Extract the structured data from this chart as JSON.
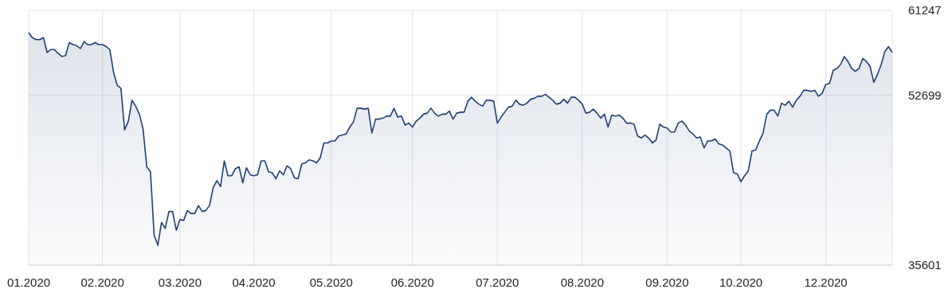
{
  "chart_data": {
    "type": "area",
    "categories": [
      "01.2020",
      null,
      null,
      null,
      null,
      null,
      null,
      null,
      null,
      null,
      null,
      null,
      null,
      null,
      null,
      null,
      null,
      null,
      null,
      null,
      "02.2020",
      null,
      null,
      null,
      null,
      null,
      null,
      null,
      null,
      null,
      null,
      null,
      null,
      null,
      null,
      null,
      null,
      null,
      null,
      null,
      null,
      "03.2020",
      null,
      null,
      null,
      null,
      null,
      null,
      null,
      null,
      null,
      null,
      null,
      null,
      null,
      null,
      null,
      null,
      null,
      null,
      null,
      "04.2020",
      null,
      null,
      null,
      null,
      null,
      null,
      null,
      null,
      null,
      null,
      null,
      null,
      null,
      null,
      null,
      null,
      null,
      null,
      null,
      null,
      "05.2020",
      null,
      null,
      null,
      null,
      null,
      null,
      null,
      null,
      null,
      null,
      null,
      null,
      null,
      null,
      null,
      null,
      null,
      null,
      null,
      null,
      null,
      "06.2020",
      null,
      null,
      null,
      null,
      null,
      null,
      null,
      null,
      null,
      null,
      null,
      null,
      null,
      null,
      null,
      null,
      null,
      null,
      null,
      null,
      null,
      null,
      "07.2020",
      null,
      null,
      null,
      null,
      null,
      null,
      null,
      null,
      null,
      null,
      null,
      null,
      null,
      null,
      null,
      null,
      null,
      null,
      null,
      null,
      null,
      null,
      "08.2020",
      null,
      null,
      null,
      null,
      null,
      null,
      null,
      null,
      null,
      null,
      null,
      null,
      null,
      null,
      null,
      null,
      null,
      null,
      null,
      null,
      null,
      null,
      "09.2020",
      null,
      null,
      null,
      null,
      null,
      null,
      null,
      null,
      null,
      null,
      null,
      null,
      null,
      null,
      null,
      null,
      null,
      null,
      null,
      "10.2020",
      null,
      null,
      null,
      null,
      null,
      null,
      null,
      null,
      null,
      null,
      null,
      null,
      null,
      null,
      null,
      null,
      null,
      null,
      null,
      null,
      null,
      null,
      "12.2020",
      null,
      null,
      null,
      null,
      null,
      null,
      null,
      null,
      null,
      null,
      null,
      null,
      null,
      null,
      null,
      null,
      null,
      null
    ],
    "series": [
      {
        "color": "#1f3f73",
        "values": [
          59000,
          58500,
          58300,
          58300,
          58500,
          57000,
          57300,
          57300,
          56900,
          56600,
          56700,
          58000,
          57800,
          57700,
          57400,
          58100,
          57800,
          57800,
          58000,
          57800,
          57800,
          57600,
          57300,
          55000,
          53700,
          53400,
          49200,
          50100,
          52200,
          51600,
          50800,
          49300,
          45500,
          45000,
          38600,
          37600,
          39900,
          39300,
          41000,
          41000,
          39100,
          40200,
          40100,
          41100,
          40800,
          40800,
          41600,
          41000,
          41100,
          41600,
          43400,
          44100,
          43500,
          46100,
          44600,
          44600,
          45300,
          45500,
          43900,
          45400,
          44700,
          44600,
          44700,
          46100,
          46100,
          45000,
          44900,
          44300,
          45100,
          44700,
          45600,
          45300,
          44400,
          44300,
          45800,
          45900,
          46200,
          46100,
          45900,
          46400,
          47900,
          47900,
          48100,
          48100,
          48600,
          48700,
          48800,
          49500,
          50000,
          51400,
          51400,
          51300,
          51400,
          48900,
          50300,
          50300,
          50400,
          50600,
          50600,
          51400,
          50500,
          50600,
          49700,
          49900,
          49500,
          50100,
          50400,
          50800,
          50900,
          51400,
          50900,
          50600,
          50800,
          50800,
          51100,
          50300,
          50900,
          51000,
          51000,
          52100,
          52500,
          52100,
          51800,
          51600,
          52200,
          52200,
          52100,
          49900,
          50500,
          51000,
          51500,
          51600,
          52200,
          51800,
          51700,
          51900,
          52300,
          52400,
          52600,
          52600,
          52800,
          52500,
          52200,
          51800,
          51900,
          52300,
          51900,
          52500,
          52500,
          52200,
          51800,
          50900,
          51000,
          51300,
          50900,
          50400,
          50800,
          49500,
          50700,
          50600,
          50700,
          50400,
          49900,
          49900,
          49800,
          48600,
          48400,
          48700,
          48400,
          47900,
          48200,
          49800,
          49500,
          49400,
          49000,
          49000,
          49900,
          50100,
          49700,
          49100,
          48800,
          48400,
          48500,
          47400,
          48100,
          48100,
          48300,
          47800,
          47700,
          47400,
          47100,
          44900,
          44800,
          44000,
          44600,
          45100,
          47100,
          47200,
          48100,
          48900,
          50800,
          51200,
          51200,
          50600,
          51900,
          51700,
          52100,
          51500,
          52200,
          52600,
          53200,
          53200,
          53100,
          53200,
          52600,
          52900,
          53800,
          53900,
          55200,
          55400,
          55800,
          56600,
          56100,
          55400,
          55100,
          55400,
          56400,
          56100,
          55600,
          54000,
          54800,
          55800,
          57100,
          57600,
          57000
        ]
      }
    ],
    "ylim": [
      35601,
      61247
    ],
    "yticks": [
      35601,
      52699,
      61247
    ],
    "grid": true
  }
}
